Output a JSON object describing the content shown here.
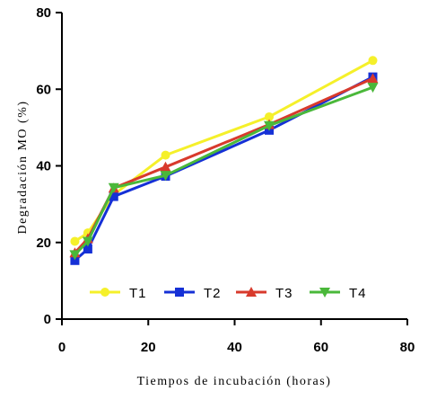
{
  "chart_data": {
    "type": "line",
    "xlabel": "Tiempos de incubación (horas)",
    "ylabel": "Degradación MO (%)",
    "xlim": [
      0,
      80
    ],
    "ylim": [
      0,
      80
    ],
    "x_ticks": [
      "0",
      "20",
      "40",
      "60",
      "80"
    ],
    "y_ticks": [
      "0",
      "20",
      "40",
      "60",
      "80"
    ],
    "grid": false,
    "legend_position": "bottom-inside",
    "x": [
      3,
      6,
      12,
      24,
      48,
      72
    ],
    "series": [
      {
        "name": "T1",
        "color": "#f5f02a",
        "marker": "circle",
        "values": [
          20.3,
          22.5,
          32.5,
          42.8,
          52.8,
          67.5
        ]
      },
      {
        "name": "T2",
        "color": "#1530d6",
        "marker": "square",
        "values": [
          15.3,
          18.3,
          32.0,
          37.3,
          49.3,
          63.2
        ]
      },
      {
        "name": "T3",
        "color": "#d83a2c",
        "marker": "triangle-up",
        "values": [
          17.3,
          21.0,
          34.2,
          39.7,
          50.8,
          62.8
        ]
      },
      {
        "name": "T4",
        "color": "#4ab83a",
        "marker": "triangle-down",
        "values": [
          16.8,
          20.3,
          34.3,
          37.5,
          50.5,
          60.5
        ]
      }
    ]
  }
}
